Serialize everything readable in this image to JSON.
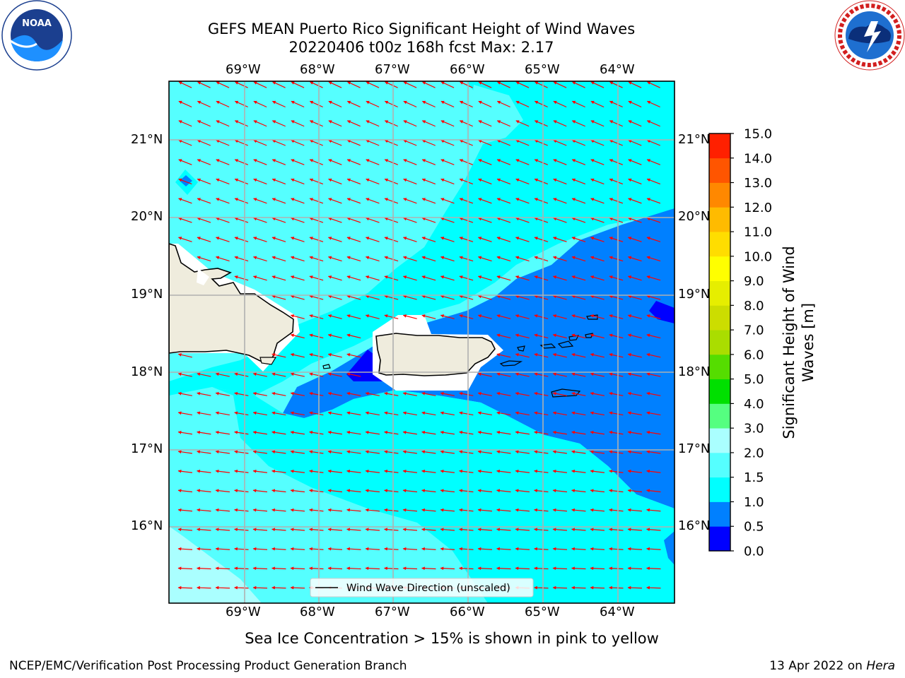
{
  "header": {
    "title_line1": "GEFS MEAN Puerto Rico Significant Height of Wind Waves",
    "title_line2": "20220406 t00z 168h fcst   Max: 2.17"
  },
  "logos": {
    "noaa": {
      "text": "NOAA",
      "ring_text": "NATIONAL OCEANIC AND ATMOSPHERIC ADMINISTRATION · U.S. DEPARTMENT OF COMMERCE"
    },
    "nws": {
      "ring_text": "NATIONAL WEATHER SERVICE"
    }
  },
  "map": {
    "lon_range": [
      -70,
      -63.25
    ],
    "lat_range": [
      15,
      21.75
    ],
    "lon_ticks": [
      "69°W",
      "68°W",
      "67°W",
      "66°W",
      "65°W",
      "64°W"
    ],
    "lat_ticks": [
      "21°N",
      "20°N",
      "19°N",
      "18°N",
      "17°N",
      "16°N"
    ],
    "grid": true,
    "legend": {
      "label": "Wind Wave Direction (unscaled)",
      "placement": "bottom-center"
    },
    "wave_direction": "toward west-southwest",
    "arrow_color": "#ff0000"
  },
  "colorbar": {
    "label": "Significant Height of Wind Waves [m]",
    "label_line1": "Significant Height of Wind",
    "label_line2": "Waves [m]",
    "ticks": [
      "15.0",
      "14.0",
      "13.0",
      "12.0",
      "11.0",
      "10.0",
      "9.0",
      "8.0",
      "7.0",
      "6.0",
      "5.0",
      "4.0",
      "3.0",
      "2.0",
      "1.5",
      "1.0",
      "0.5",
      "0.0"
    ],
    "colors_bottom_to_top": [
      "#0000ff",
      "#0080ff",
      "#00ffff",
      "#55ffff",
      "#aaffff",
      "#55ff80",
      "#00e000",
      "#55dd00",
      "#aadd00",
      "#ccdd00",
      "#e6ee00",
      "#ffff00",
      "#ffdd00",
      "#ffbb00",
      "#ff8800",
      "#ff5500",
      "#ff2000"
    ]
  },
  "chart_data": {
    "type": "heatmap",
    "variable": "Significant Height of Wind Waves [m]",
    "max": 2.17,
    "levels": [
      0.0,
      0.5,
      1.0,
      1.5,
      2.0,
      3.0,
      4.0,
      5.0,
      6.0,
      7.0,
      8.0,
      9.0,
      10.0,
      11.0,
      12.0,
      13.0,
      14.0,
      15.0
    ]
  },
  "footer": {
    "ice_note": "Sea Ice Concentration > 15% is shown in pink to yellow",
    "credit": "NCEP/EMC/Verification Post Processing Product Generation Branch",
    "date": "13 Apr 2022 on ",
    "machine": "Hera"
  }
}
